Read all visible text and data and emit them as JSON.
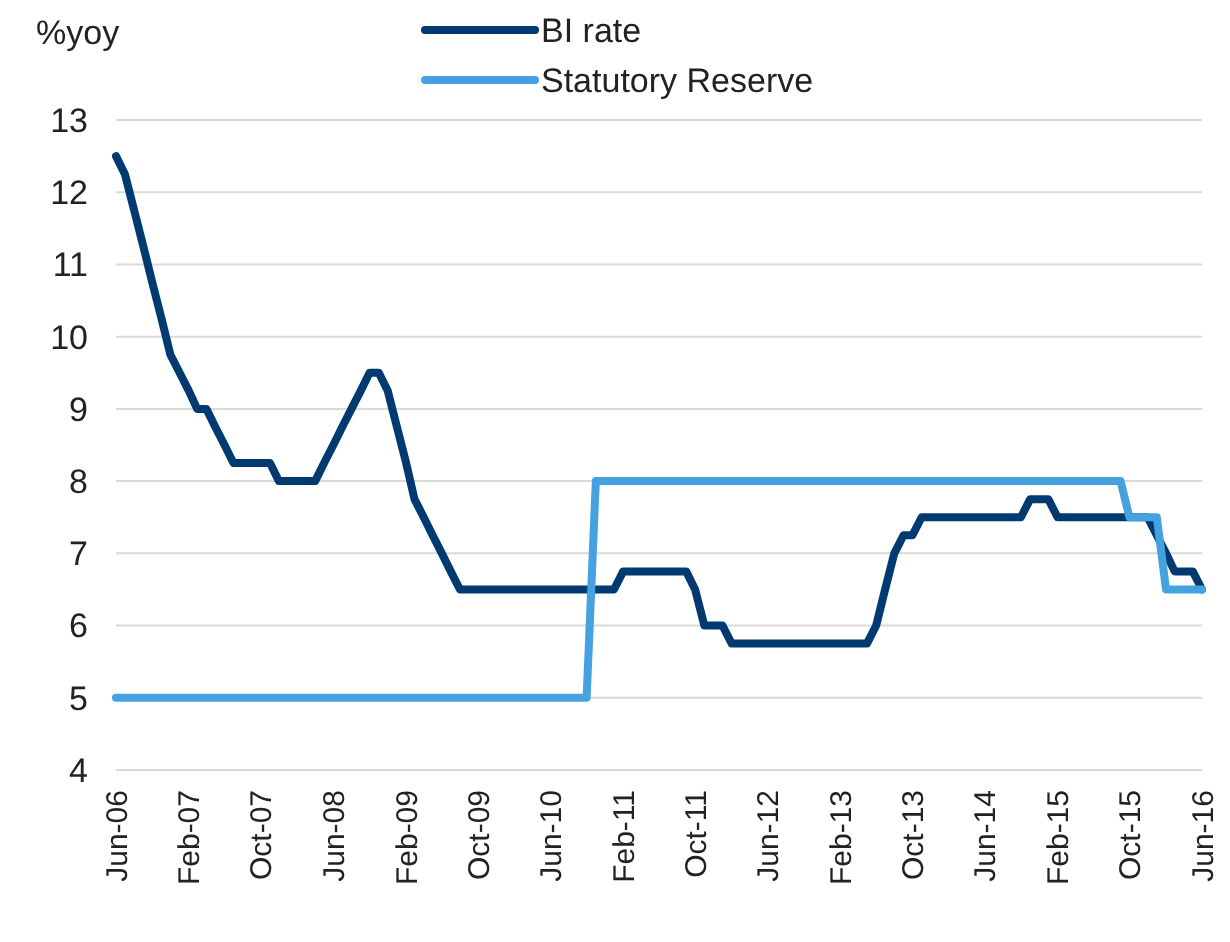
{
  "chart_data": {
    "type": "line",
    "ylabel": "%yoy",
    "xlim": [
      "2006-06",
      "2016-06"
    ],
    "xticks": [
      {
        "value": "2006-06",
        "label": "Jun-06"
      },
      {
        "value": "2007-02",
        "label": "Feb-07"
      },
      {
        "value": "2007-10",
        "label": "Oct-07"
      },
      {
        "value": "2008-06",
        "label": "Jun-08"
      },
      {
        "value": "2009-02",
        "label": "Feb-09"
      },
      {
        "value": "2009-10",
        "label": "Oct-09"
      },
      {
        "value": "2010-06",
        "label": "Jun-10"
      },
      {
        "value": "2011-02",
        "label": "Feb-11"
      },
      {
        "value": "2011-10",
        "label": "Oct-11"
      },
      {
        "value": "2012-06",
        "label": "Jun-12"
      },
      {
        "value": "2013-02",
        "label": "Feb-13"
      },
      {
        "value": "2013-10",
        "label": "Oct-13"
      },
      {
        "value": "2014-06",
        "label": "Jun-14"
      },
      {
        "value": "2015-02",
        "label": "Feb-15"
      },
      {
        "value": "2015-10",
        "label": "Oct-15"
      },
      {
        "value": "2016-06",
        "label": "Jun-16"
      }
    ],
    "ylim": [
      4,
      13
    ],
    "yticks": [
      4,
      5,
      6,
      7,
      8,
      9,
      10,
      11,
      12,
      13
    ],
    "grid": "y",
    "legend": "top",
    "marker": "none",
    "line_style": "solid",
    "series": [
      {
        "name": "BI rate",
        "color": "#003a70",
        "x": [
          "2006-06",
          "2006-07",
          "2006-08",
          "2006-09",
          "2006-10",
          "2006-11",
          "2006-12",
          "2007-01",
          "2007-02",
          "2007-03",
          "2007-04",
          "2007-05",
          "2007-06",
          "2007-07",
          "2007-11",
          "2007-12",
          "2008-04",
          "2008-05",
          "2008-06",
          "2008-07",
          "2008-08",
          "2008-09",
          "2008-10",
          "2008-11",
          "2008-12",
          "2009-01",
          "2009-02",
          "2009-03",
          "2009-04",
          "2009-05",
          "2009-06",
          "2009-07",
          "2009-08",
          "2011-01",
          "2011-02",
          "2011-09",
          "2011-10",
          "2011-11",
          "2012-01",
          "2012-02",
          "2013-05",
          "2013-06",
          "2013-07",
          "2013-08",
          "2013-09",
          "2013-10",
          "2013-11",
          "2014-10",
          "2014-11",
          "2015-01",
          "2015-02",
          "2015-12",
          "2016-01",
          "2016-02",
          "2016-03",
          "2016-05",
          "2016-06"
        ],
        "values": [
          12.5,
          12.25,
          11.75,
          11.25,
          10.75,
          10.25,
          9.75,
          9.5,
          9.25,
          9.0,
          9.0,
          8.75,
          8.5,
          8.25,
          8.25,
          8.0,
          8.0,
          8.25,
          8.5,
          8.75,
          9.0,
          9.25,
          9.5,
          9.5,
          9.25,
          8.75,
          8.25,
          7.75,
          7.5,
          7.25,
          7.0,
          6.75,
          6.5,
          6.5,
          6.75,
          6.75,
          6.5,
          6.0,
          6.0,
          5.75,
          5.75,
          6.0,
          6.5,
          7.0,
          7.25,
          7.25,
          7.5,
          7.5,
          7.75,
          7.75,
          7.5,
          7.5,
          7.25,
          7.0,
          6.75,
          6.75,
          6.5
        ]
      },
      {
        "name": "Statutory Reserve",
        "color": "#45a1e0",
        "x": [
          "2006-06",
          "2010-10",
          "2010-11",
          "2015-09",
          "2015-10",
          "2016-01",
          "2016-02",
          "2016-06"
        ],
        "values": [
          5,
          5,
          8,
          8,
          7.5,
          7.5,
          6.5,
          6.5
        ]
      }
    ]
  }
}
